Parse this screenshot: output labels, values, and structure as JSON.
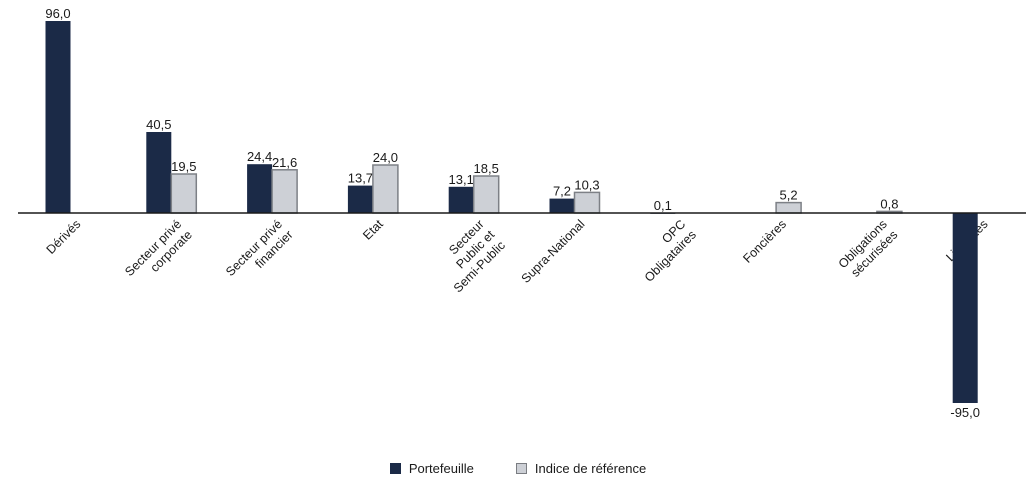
{
  "chart_data": {
    "type": "bar",
    "categories": [
      "Dérivés",
      "Secteur privé corporate",
      "Secteur privé financier",
      "Etat",
      "Secteur Public et Semi-Public",
      "Supra-National",
      "OPC Obligataires",
      "Foncières",
      "Obligations sécurisées",
      "Liquidités"
    ],
    "series": [
      {
        "name": "Portefeuille",
        "color": "#1b2a47",
        "values": [
          96.0,
          40.5,
          24.4,
          13.7,
          13.1,
          7.2,
          0.1,
          null,
          null,
          -95.0
        ],
        "labels": [
          "96,0",
          "40,5",
          "24,4",
          "13,7",
          "13,1",
          "7,2",
          "0,1",
          "",
          "",
          "-95,0"
        ]
      },
      {
        "name": "Indice de référence",
        "color": "#cdd0d6",
        "values": [
          null,
          19.5,
          21.6,
          24.0,
          18.5,
          10.3,
          null,
          5.2,
          0.8,
          null
        ],
        "labels": [
          "",
          "19,5",
          "21,6",
          "24,0",
          "18,5",
          "10,3",
          "",
          "5,2",
          "0,8",
          ""
        ]
      }
    ],
    "ylim": [
      -95,
      96
    ],
    "grid": false,
    "legend_position": "bottom"
  },
  "legend": [
    {
      "label": "Portefeuille",
      "color": "#1b2a47"
    },
    {
      "label": "Indice de référence",
      "color": "#cdd0d6"
    }
  ]
}
